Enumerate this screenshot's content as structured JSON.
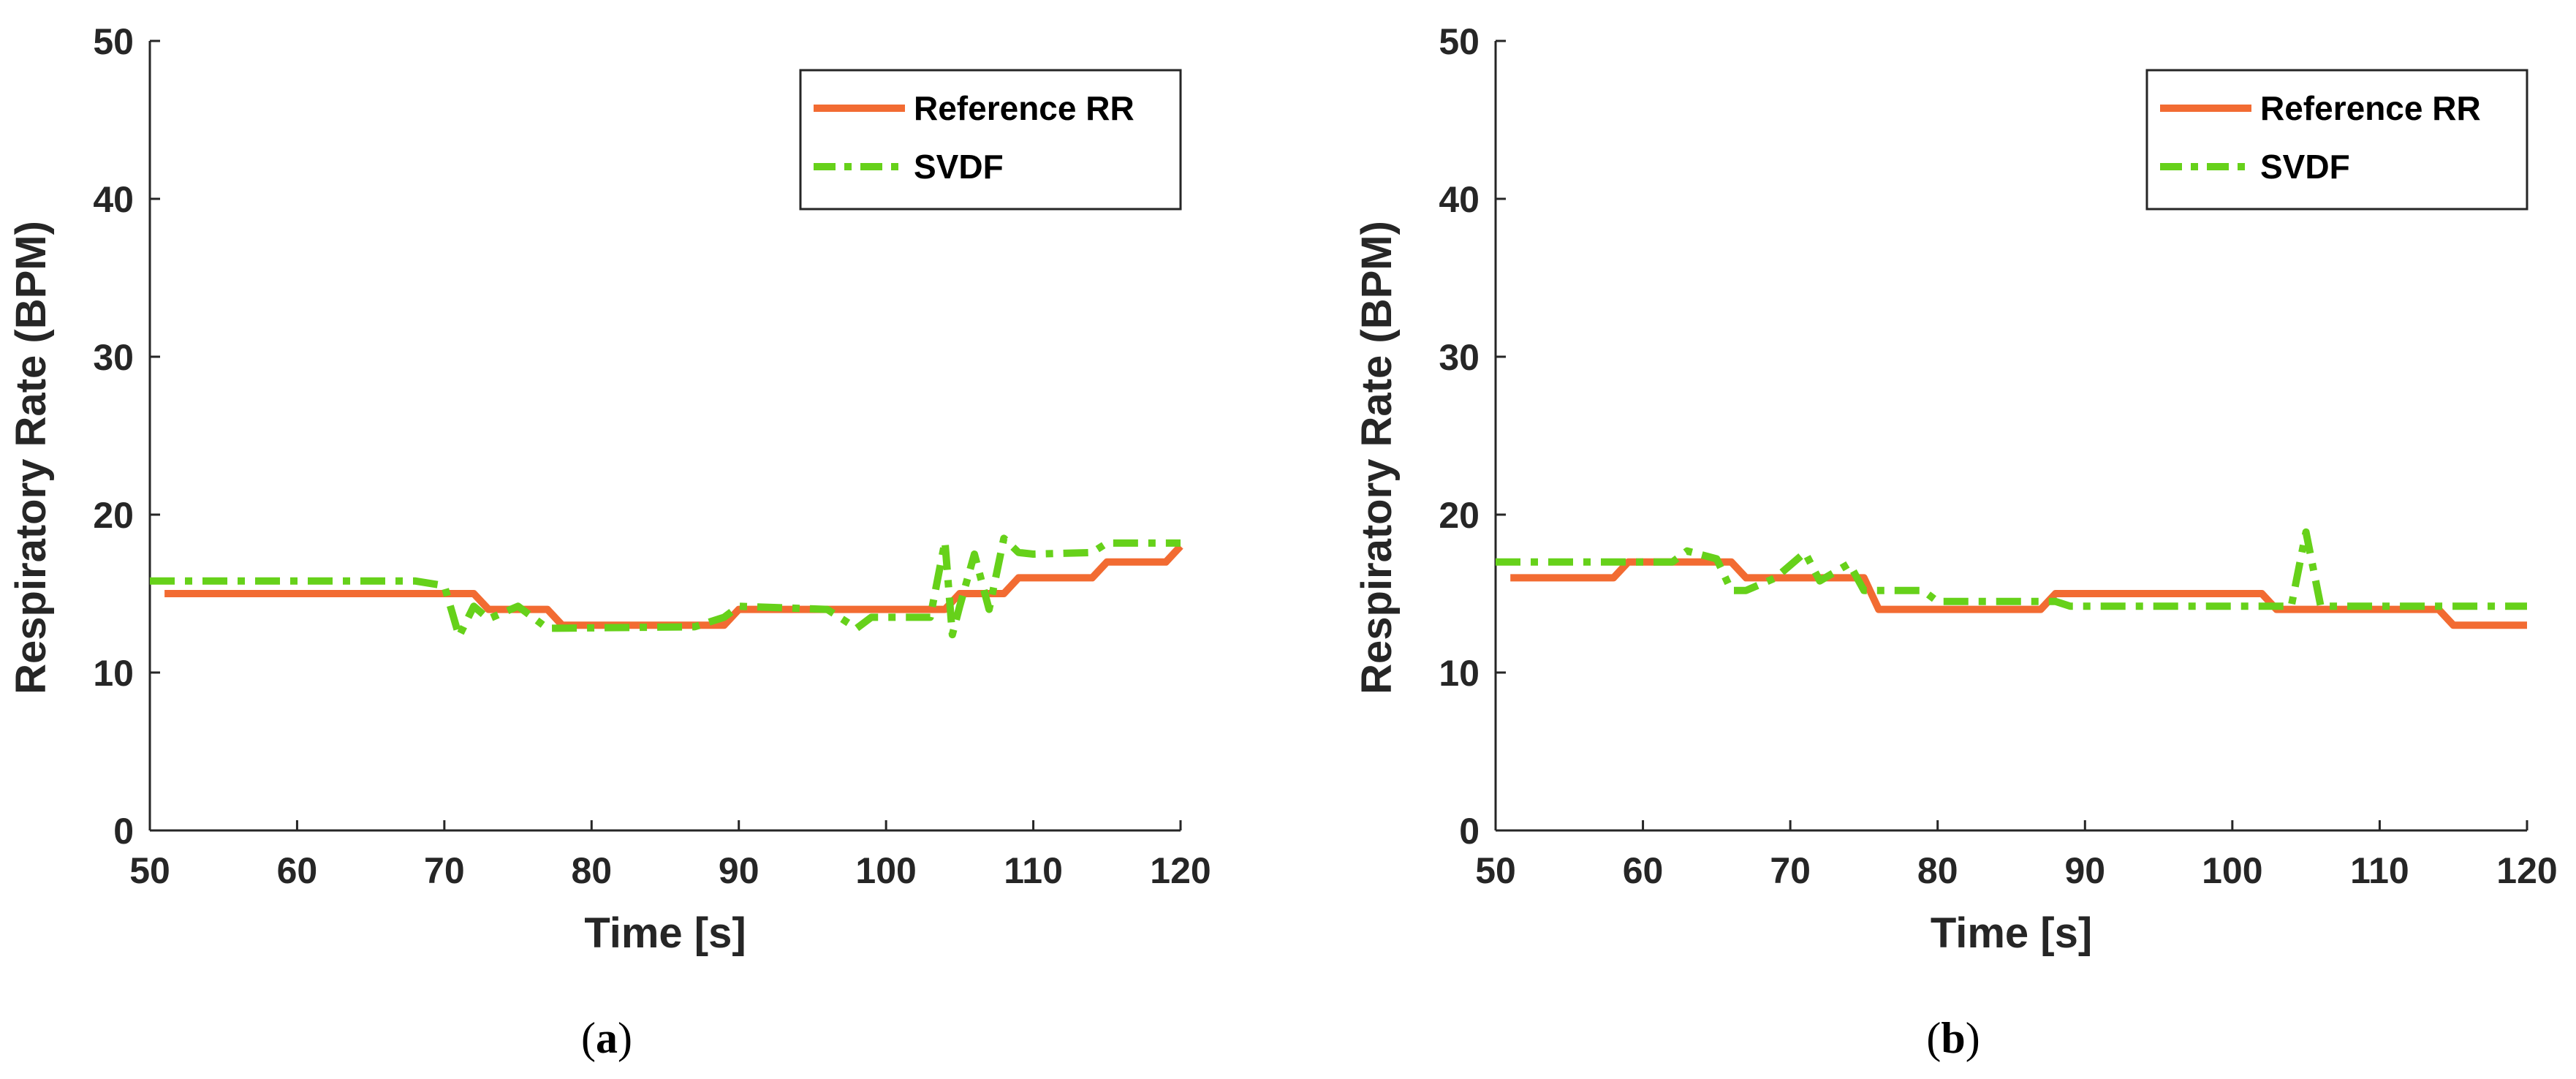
{
  "colors": {
    "reference": "#f26b32",
    "svdf": "#66d11a",
    "axis": "#262626"
  },
  "chart_data": [
    {
      "type": "line",
      "panel": "a",
      "caption_open": "(",
      "caption_letter": "a",
      "caption_close": ")",
      "xlabel": "Time [s]",
      "ylabel": "Respiratory Rate (BPM)",
      "xlim": [
        50,
        120
      ],
      "ylim": [
        0,
        50
      ],
      "xticks": [
        50,
        60,
        70,
        80,
        90,
        100,
        110,
        120
      ],
      "yticks": [
        0,
        10,
        20,
        30,
        40,
        50
      ],
      "grid": false,
      "legend_position": "top-right",
      "series": [
        {
          "name": "Reference RR",
          "style": "solid",
          "x": [
            51,
            72,
            73,
            77,
            78,
            89,
            90,
            104,
            105,
            108,
            109,
            114,
            115,
            119,
            120
          ],
          "y": [
            15,
            15,
            14,
            14,
            13,
            13,
            14,
            14,
            15,
            15,
            16,
            16,
            17,
            17,
            18
          ]
        },
        {
          "name": "SVDF",
          "style": "dash-dot",
          "x": [
            50,
            68,
            70,
            71,
            72,
            73,
            75,
            77,
            87,
            89,
            90,
            96,
            98,
            99,
            103,
            104,
            104.5,
            105,
            106,
            107,
            108,
            109,
            110,
            114,
            115,
            120
          ],
          "y": [
            15.8,
            15.8,
            15.5,
            12.3,
            14.2,
            13.4,
            14.2,
            12.8,
            12.9,
            13.5,
            14.2,
            14.0,
            12.8,
            13.5,
            13.5,
            18.3,
            12.4,
            14.2,
            17.5,
            14.0,
            18.5,
            17.6,
            17.5,
            17.6,
            18.2,
            18.2
          ]
        }
      ]
    },
    {
      "type": "line",
      "panel": "b",
      "caption_open": "(",
      "caption_letter": "b",
      "caption_close": ")",
      "xlabel": "Time [s]",
      "ylabel": "Respiratory Rate (BPM)",
      "xlim": [
        50,
        120
      ],
      "ylim": [
        0,
        50
      ],
      "xticks": [
        50,
        60,
        70,
        80,
        90,
        100,
        110,
        120
      ],
      "yticks": [
        0,
        10,
        20,
        30,
        40,
        50
      ],
      "grid": false,
      "legend_position": "top-right",
      "series": [
        {
          "name": "Reference RR",
          "style": "solid",
          "x": [
            51,
            58,
            59,
            66,
            67,
            75,
            76,
            87,
            88,
            102,
            103,
            114,
            115,
            120
          ],
          "y": [
            16,
            16,
            17,
            17,
            16,
            16,
            14,
            14,
            15,
            15,
            14,
            14,
            13,
            13
          ]
        },
        {
          "name": "SVDF",
          "style": "dash-dot",
          "x": [
            50,
            62,
            63,
            65,
            66,
            67,
            69,
            71,
            72,
            74,
            75,
            79,
            80,
            88,
            89,
            93,
            104,
            105,
            106,
            120
          ],
          "y": [
            17,
            17,
            17.7,
            17.2,
            15.2,
            15.2,
            16.0,
            17.6,
            15.8,
            16.9,
            15.2,
            15.2,
            14.5,
            14.5,
            14.2,
            14.2,
            14.2,
            18.9,
            14.2,
            14.2
          ]
        }
      ]
    }
  ]
}
